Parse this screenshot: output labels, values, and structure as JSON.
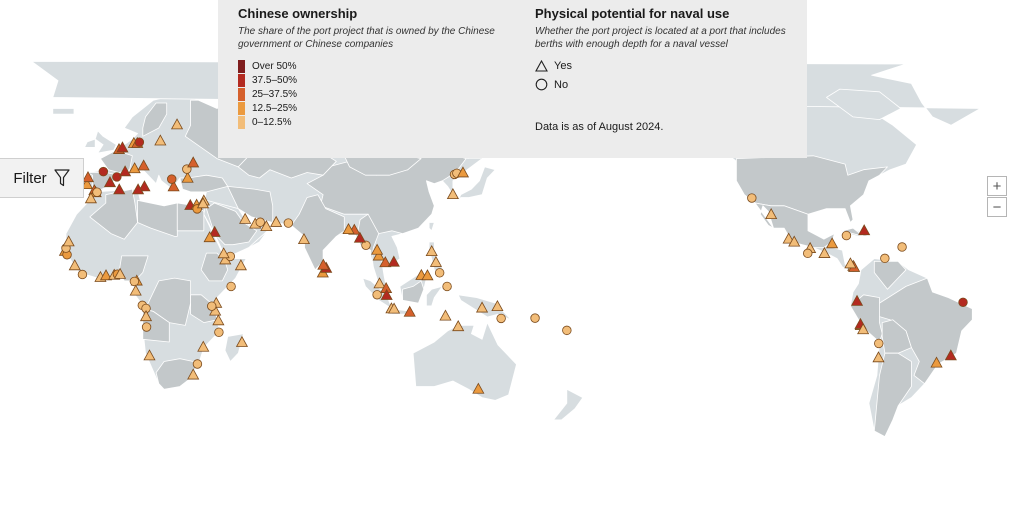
{
  "legend": {
    "ownership_title": "Chinese ownership",
    "ownership_desc": "The share of the port project that is owned by the Chinese government or Chinese companies",
    "ownership_bins": [
      {
        "label": "Over 50%",
        "color": "#7f1d1d"
      },
      {
        "label": "37.5–50%",
        "color": "#b32a20"
      },
      {
        "label": "25–37.5%",
        "color": "#d5602c"
      },
      {
        "label": "12.5–25%",
        "color": "#eb9a3f"
      },
      {
        "label": "0–12.5%",
        "color": "#f2bd79"
      }
    ],
    "naval_title": "Physical potential for naval use",
    "naval_desc": "Whether the port project is located at a port that includes berths with enough depth for a naval vessel",
    "yes_label": "Yes",
    "no_label": "No",
    "as_of": "Data is as of August 2024."
  },
  "controls": {
    "filter_label": "Filter",
    "zoom_in_label": "+",
    "zoom_out_label": "−"
  },
  "colors": {
    "ocean": "#ffffff",
    "land_light": "#d7dde0",
    "land_dark": "#c3c8ca",
    "panel": "#ececec",
    "marker_stroke": "#7a4a1c"
  },
  "icons": [
    "filter-icon",
    "triangle-yes-icon",
    "circle-no-icon"
  ],
  "ports": [
    {
      "shape": "triangle",
      "level": 3,
      "lon": -9.1,
      "lat": 38.7
    },
    {
      "shape": "triangle",
      "level": 2,
      "lon": -8.7,
      "lat": 41.2
    },
    {
      "shape": "circle",
      "level": 1,
      "lon": -2.9,
      "lat": 43.3
    },
    {
      "shape": "triangle",
      "level": 1,
      "lon": -0.4,
      "lat": 39.4
    },
    {
      "shape": "circle",
      "level": 1,
      "lon": 2.2,
      "lat": 41.4
    },
    {
      "shape": "triangle",
      "level": 2,
      "lon": -6.3,
      "lat": 36.5
    },
    {
      "shape": "triangle",
      "level": 1,
      "lon": 5.3,
      "lat": 43.3
    },
    {
      "shape": "triangle",
      "level": 2,
      "lon": 3.0,
      "lat": 51.3
    },
    {
      "shape": "triangle",
      "level": 1,
      "lon": 4.3,
      "lat": 51.9
    },
    {
      "shape": "triangle",
      "level": 3,
      "lon": 8.6,
      "lat": 53.5
    },
    {
      "shape": "triangle",
      "level": 2,
      "lon": 9.9,
      "lat": 53.5
    },
    {
      "shape": "circle",
      "level": 1,
      "lon": 10.7,
      "lat": 53.9
    },
    {
      "shape": "triangle",
      "level": 4,
      "lon": 18.6,
      "lat": 54.4
    },
    {
      "shape": "triangle",
      "level": 4,
      "lon": 24.9,
      "lat": 60.2
    },
    {
      "shape": "triangle",
      "level": 3,
      "lon": 8.9,
      "lat": 44.4
    },
    {
      "shape": "triangle",
      "level": 2,
      "lon": 12.3,
      "lat": 45.4
    },
    {
      "shape": "triangle",
      "level": 1,
      "lon": 12.6,
      "lat": 37.9
    },
    {
      "shape": "triangle",
      "level": 2,
      "lon": 23.6,
      "lat": 37.9
    },
    {
      "shape": "circle",
      "level": 2,
      "lon": 22.9,
      "lat": 40.6
    },
    {
      "shape": "triangle",
      "level": 3,
      "lon": 28.9,
      "lat": 41.0
    },
    {
      "shape": "circle",
      "level": 4,
      "lon": 28.6,
      "lat": 44.2
    },
    {
      "shape": "triangle",
      "level": 2,
      "lon": 31.0,
      "lat": 46.5
    },
    {
      "shape": "triangle",
      "level": 1,
      "lon": 10.2,
      "lat": 36.8
    },
    {
      "shape": "triangle",
      "level": 3,
      "lon": -5.8,
      "lat": 35.8
    },
    {
      "shape": "triangle",
      "level": 4,
      "lon": -7.6,
      "lat": 33.6
    },
    {
      "shape": "circle",
      "level": 4,
      "lon": -5.3,
      "lat": 35.9
    },
    {
      "shape": "triangle",
      "level": 1,
      "lon": 3.1,
      "lat": 36.8
    },
    {
      "shape": "triangle",
      "level": 1,
      "lon": 29.9,
      "lat": 31.2
    },
    {
      "shape": "triangle",
      "level": 3,
      "lon": 32.3,
      "lat": 31.3
    },
    {
      "shape": "circle",
      "level": 3,
      "lon": 32.5,
      "lat": 29.9
    },
    {
      "shape": "triangle",
      "level": 4,
      "lon": 35.0,
      "lat": 32.8
    },
    {
      "shape": "triangle",
      "level": 4,
      "lon": 34.7,
      "lat": 31.8
    },
    {
      "shape": "triangle",
      "level": 1,
      "lon": 39.1,
      "lat": 21.5
    },
    {
      "shape": "triangle",
      "level": 3,
      "lon": 37.2,
      "lat": 19.6
    },
    {
      "shape": "triangle",
      "level": 4,
      "lon": 50.6,
      "lat": 26.2
    },
    {
      "shape": "triangle",
      "level": 4,
      "lon": 54.4,
      "lat": 24.5
    },
    {
      "shape": "circle",
      "level": 4,
      "lon": 56.3,
      "lat": 25.1
    },
    {
      "shape": "triangle",
      "level": 4,
      "lon": 58.6,
      "lat": 23.6
    },
    {
      "shape": "triangle",
      "level": 4,
      "lon": 62.3,
      "lat": 25.1
    },
    {
      "shape": "circle",
      "level": 4,
      "lon": 66.9,
      "lat": 24.8
    },
    {
      "shape": "triangle",
      "level": 4,
      "lon": 43.1,
      "lat": 11.6
    },
    {
      "shape": "circle",
      "level": 4,
      "lon": 45.0,
      "lat": 12.8
    },
    {
      "shape": "triangle",
      "level": 4,
      "lon": 42.5,
      "lat": 13.8
    },
    {
      "shape": "circle",
      "level": 4,
      "lon": 45.3,
      "lat": 2.0
    },
    {
      "shape": "triangle",
      "level": 4,
      "lon": 49.0,
      "lat": 9.5
    },
    {
      "shape": "triangle",
      "level": 4,
      "lon": 39.7,
      "lat": -4.0
    },
    {
      "shape": "triangle",
      "level": 4,
      "lon": 39.3,
      "lat": -6.8
    },
    {
      "shape": "circle",
      "level": 4,
      "lon": 38.0,
      "lat": -5.1
    },
    {
      "shape": "triangle",
      "level": 4,
      "lon": 40.5,
      "lat": -10.3
    },
    {
      "shape": "circle",
      "level": 4,
      "lon": 40.7,
      "lat": -14.5
    },
    {
      "shape": "triangle",
      "level": 4,
      "lon": 34.8,
      "lat": -19.8
    },
    {
      "shape": "circle",
      "level": 4,
      "lon": 32.6,
      "lat": -25.9
    },
    {
      "shape": "triangle",
      "level": 4,
      "lon": 31.0,
      "lat": -29.8
    },
    {
      "shape": "triangle",
      "level": 4,
      "lon": 49.4,
      "lat": -18.1
    },
    {
      "shape": "triangle",
      "level": 3,
      "lon": -17.4,
      "lat": 14.7
    },
    {
      "shape": "circle",
      "level": 3,
      "lon": -16.6,
      "lat": 13.4
    },
    {
      "shape": "circle",
      "level": 4,
      "lon": -17.0,
      "lat": 15.8
    },
    {
      "shape": "triangle",
      "level": 4,
      "lon": -16.0,
      "lat": 18.1
    },
    {
      "shape": "triangle",
      "level": 4,
      "lon": -13.7,
      "lat": 9.5
    },
    {
      "shape": "circle",
      "level": 4,
      "lon": -10.8,
      "lat": 6.3
    },
    {
      "shape": "triangle",
      "level": 4,
      "lon": -4.0,
      "lat": 5.3
    },
    {
      "shape": "triangle",
      "level": 3,
      "lon": -1.9,
      "lat": 5.9
    },
    {
      "shape": "triangle",
      "level": 4,
      "lon": 1.2,
      "lat": 6.1
    },
    {
      "shape": "circle",
      "level": 3,
      "lon": 2.4,
      "lat": 6.4
    },
    {
      "shape": "triangle",
      "level": 4,
      "lon": 3.4,
      "lat": 6.4
    },
    {
      "shape": "triangle",
      "level": 3,
      "lon": 9.7,
      "lat": 4.0
    },
    {
      "shape": "circle",
      "level": 4,
      "lon": 8.8,
      "lat": 3.8
    },
    {
      "shape": "triangle",
      "level": 4,
      "lon": 9.3,
      "lat": 0.4
    },
    {
      "shape": "circle",
      "level": 4,
      "lon": 11.8,
      "lat": -4.8
    },
    {
      "shape": "circle",
      "level": 4,
      "lon": 13.2,
      "lat": -5.9
    },
    {
      "shape": "triangle",
      "level": 4,
      "lon": 13.2,
      "lat": -8.8
    },
    {
      "shape": "circle",
      "level": 4,
      "lon": 13.4,
      "lat": -12.6
    },
    {
      "shape": "triangle",
      "level": 4,
      "lon": 14.5,
      "lat": -22.9
    },
    {
      "shape": "triangle",
      "level": 4,
      "lon": 72.8,
      "lat": 18.9
    },
    {
      "shape": "triangle",
      "level": 3,
      "lon": 79.9,
      "lat": 6.9
    },
    {
      "shape": "triangle",
      "level": 1,
      "lon": 81.2,
      "lat": 8.6
    },
    {
      "shape": "triangle",
      "level": 2,
      "lon": 80.1,
      "lat": 9.7
    },
    {
      "shape": "triangle",
      "level": 2,
      "lon": 91.8,
      "lat": 22.3
    },
    {
      "shape": "triangle",
      "level": 3,
      "lon": 89.6,
      "lat": 22.5
    },
    {
      "shape": "circle",
      "level": 4,
      "lon": 96.2,
      "lat": 16.8
    },
    {
      "shape": "triangle",
      "level": 1,
      "lon": 93.9,
      "lat": 19.4
    },
    {
      "shape": "triangle",
      "level": 3,
      "lon": 101.0,
      "lat": 13.0
    },
    {
      "shape": "triangle",
      "level": 3,
      "lon": 100.4,
      "lat": 15.1
    },
    {
      "shape": "triangle",
      "level": 2,
      "lon": 103.5,
      "lat": 10.6
    },
    {
      "shape": "triangle",
      "level": 1,
      "lon": 106.7,
      "lat": 10.8
    },
    {
      "shape": "triangle",
      "level": 4,
      "lon": 101.3,
      "lat": 3.0
    },
    {
      "shape": "triangle",
      "level": 2,
      "lon": 103.8,
      "lat": 1.3
    },
    {
      "shape": "triangle",
      "level": 1,
      "lon": 104.0,
      "lat": -1.2
    },
    {
      "shape": "circle",
      "level": 4,
      "lon": 100.4,
      "lat": -1.0
    },
    {
      "shape": "triangle",
      "level": 4,
      "lon": 105.8,
      "lat": -6.0
    },
    {
      "shape": "triangle",
      "level": 2,
      "lon": 112.7,
      "lat": -7.2
    },
    {
      "shape": "triangle",
      "level": 4,
      "lon": 106.8,
      "lat": -6.1
    },
    {
      "shape": "triangle",
      "level": 3,
      "lon": 117.1,
      "lat": 6.0
    },
    {
      "shape": "triangle",
      "level": 3,
      "lon": 119.4,
      "lat": 5.9
    },
    {
      "shape": "triangle",
      "level": 4,
      "lon": 121.0,
      "lat": 14.6
    },
    {
      "shape": "circle",
      "level": 4,
      "lon": 124.0,
      "lat": 6.9
    },
    {
      "shape": "triangle",
      "level": 4,
      "lon": 122.6,
      "lat": 10.7
    },
    {
      "shape": "circle",
      "level": 4,
      "lon": 126.8,
      "lat": 2.0
    },
    {
      "shape": "triangle",
      "level": 4,
      "lon": 126.2,
      "lat": -8.6
    },
    {
      "shape": "triangle",
      "level": 4,
      "lon": 140.0,
      "lat": -5.7
    },
    {
      "shape": "circle",
      "level": 4,
      "lon": 147.2,
      "lat": -9.5
    },
    {
      "shape": "triangle",
      "level": 4,
      "lon": 145.8,
      "lat": -5.2
    },
    {
      "shape": "triangle",
      "level": 4,
      "lon": 131.0,
      "lat": -12.4
    },
    {
      "shape": "triangle",
      "level": 3,
      "lon": 138.6,
      "lat": -34.9
    },
    {
      "shape": "circle",
      "level": 4,
      "lon": 160.0,
      "lat": -9.4
    },
    {
      "shape": "circle",
      "level": 4,
      "lon": 172.0,
      "lat": -13.8
    },
    {
      "shape": "triangle",
      "level": 4,
      "lon": 129.0,
      "lat": 35.1
    },
    {
      "shape": "circle",
      "level": 4,
      "lon": 129.6,
      "lat": 42.3
    },
    {
      "shape": "circle",
      "level": 4,
      "lon": 130.5,
      "lat": 42.7
    },
    {
      "shape": "triangle",
      "level": 3,
      "lon": 132.8,
      "lat": 42.9
    },
    {
      "shape": "circle",
      "level": 4,
      "lon": -118.2,
      "lat": 33.8
    },
    {
      "shape": "triangle",
      "level": 4,
      "lon": -110.9,
      "lat": 27.9
    },
    {
      "shape": "triangle",
      "level": 4,
      "lon": -104.3,
      "lat": 19.1
    },
    {
      "shape": "triangle",
      "level": 4,
      "lon": -102.2,
      "lat": 18.0
    },
    {
      "shape": "triangle",
      "level": 4,
      "lon": -96.2,
      "lat": 15.7
    },
    {
      "shape": "circle",
      "level": 4,
      "lon": -97.1,
      "lat": 13.9
    },
    {
      "shape": "triangle",
      "level": 4,
      "lon": -90.8,
      "lat": 13.9
    },
    {
      "shape": "triangle",
      "level": 3,
      "lon": -87.9,
      "lat": 17.4
    },
    {
      "shape": "triangle",
      "level": 4,
      "lon": -79.9,
      "lat": 9.3
    },
    {
      "shape": "triangle",
      "level": 2,
      "lon": -79.6,
      "lat": 8.9
    },
    {
      "shape": "triangle",
      "level": 4,
      "lon": -81.0,
      "lat": 10.2
    },
    {
      "shape": "triangle",
      "level": 1,
      "lon": -75.8,
      "lat": 22.1
    },
    {
      "shape": "circle",
      "level": 4,
      "lon": -82.5,
      "lat": 20.3
    },
    {
      "shape": "circle",
      "level": 4,
      "lon": -61.5,
      "lat": 16.2
    },
    {
      "shape": "circle",
      "level": 4,
      "lon": -68.0,
      "lat": 12.1
    },
    {
      "shape": "triangle",
      "level": 4,
      "lon": -77.1,
      "lat": -12.0
    },
    {
      "shape": "triangle",
      "level": 1,
      "lon": -78.5,
      "lat": -3.3
    },
    {
      "shape": "triangle",
      "level": 1,
      "lon": -77.2,
      "lat": -11.6
    },
    {
      "shape": "triangle",
      "level": 4,
      "lon": -76.2,
      "lat": -13.5
    },
    {
      "shape": "circle",
      "level": 4,
      "lon": -70.3,
      "lat": -18.5
    },
    {
      "shape": "triangle",
      "level": 4,
      "lon": -70.4,
      "lat": -23.6
    },
    {
      "shape": "circle",
      "level": 1,
      "lon": -38.5,
      "lat": -3.7
    },
    {
      "shape": "triangle",
      "level": 1,
      "lon": -43.1,
      "lat": -22.9
    },
    {
      "shape": "triangle",
      "level": 3,
      "lon": -48.5,
      "lat": -25.5
    }
  ]
}
